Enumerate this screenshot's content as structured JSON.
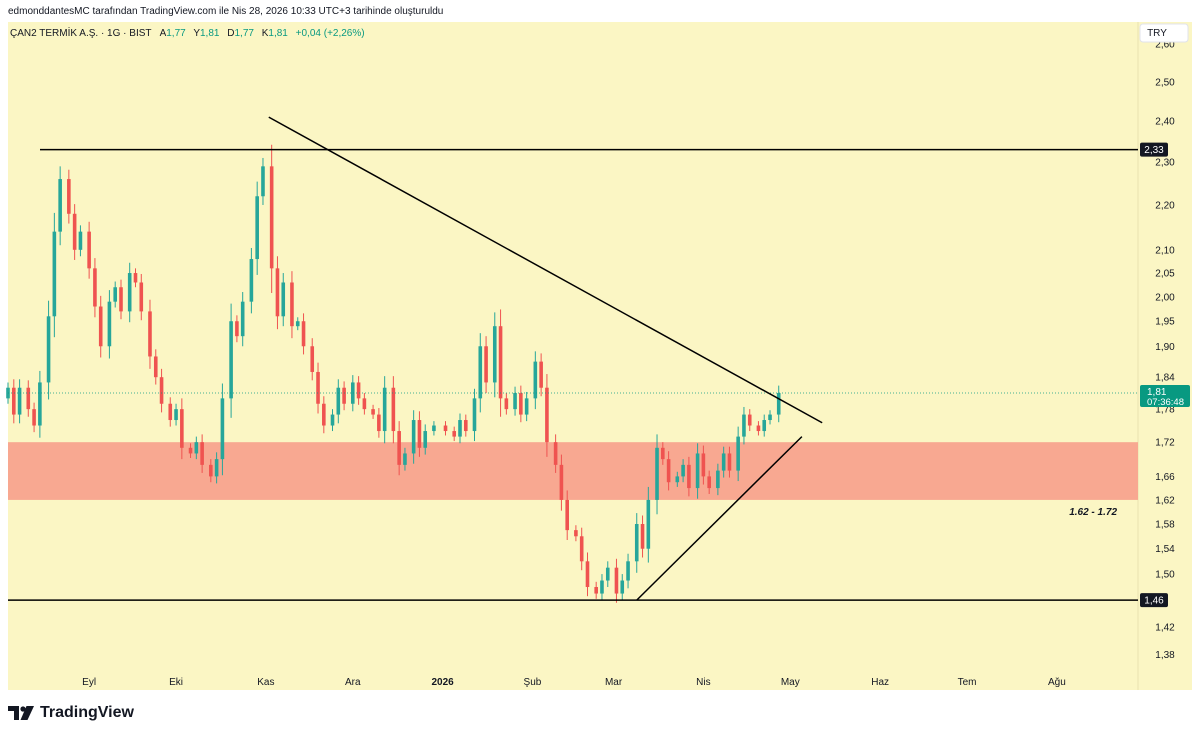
{
  "header": {
    "caption": "edmonddantesMC tarafından TradingView.com ile Nis 28, 2026 10:33 UTC+3 tarihinde oluşturuldu"
  },
  "legend": {
    "symbol": "ÇAN2 TERMİK A.Ş. · 1G · BIST",
    "open_label": "A",
    "open_value": "1,77",
    "high_label": "Y",
    "high_value": "1,81",
    "low_label": "D",
    "low_value": "1,77",
    "close_label": "K",
    "close_value": "1,81",
    "change": "+0,04 (+2,26%)"
  },
  "currency": "TRY",
  "branding": {
    "name": "TradingView"
  },
  "colors": {
    "background": "#fbf6c4",
    "up": "#26a69a",
    "down": "#ef5350",
    "zone": "#f8a891",
    "line": "#000000",
    "price_badge": "#089981"
  },
  "chart_data": {
    "type": "candlestick",
    "symbol": "ÇAN2",
    "interval": "1G",
    "ylim": [
      1.33,
      2.66
    ],
    "y_scale": "log",
    "y_ticks": [
      2.6,
      2.5,
      2.4,
      2.3,
      2.2,
      2.1,
      2.05,
      2.0,
      1.95,
      1.9,
      1.84,
      1.78,
      1.72,
      1.66,
      1.62,
      1.58,
      1.54,
      1.5,
      1.42,
      1.38
    ],
    "y_tick_labels": [
      "2,60",
      "2,50",
      "2,40",
      "2,30",
      "2,20",
      "2,10",
      "2,05",
      "2,00",
      "1,95",
      "1,90",
      "1,84",
      "1,78",
      "1,72",
      "1,66",
      "1,62",
      "1,58",
      "1,54",
      "1,50",
      "1,42",
      "1,38"
    ],
    "x_ticks": [
      {
        "label": "Eyl",
        "date": "2025-09-01",
        "bold": false
      },
      {
        "label": "Eki",
        "date": "2025-10-01",
        "bold": false
      },
      {
        "label": "Kas",
        "date": "2025-11-01",
        "bold": false
      },
      {
        "label": "Ara",
        "date": "2025-12-01",
        "bold": false
      },
      {
        "label": "2026",
        "date": "2026-01-01",
        "bold": true
      },
      {
        "label": "Şub",
        "date": "2026-02-01",
        "bold": false
      },
      {
        "label": "Mar",
        "date": "2026-03-01",
        "bold": false
      },
      {
        "label": "Nis",
        "date": "2026-04-01",
        "bold": false
      },
      {
        "label": "May",
        "date": "2026-05-01",
        "bold": false
      },
      {
        "label": "Haz",
        "date": "2026-06-01",
        "bold": false
      },
      {
        "label": "Tem",
        "date": "2026-07-01",
        "bold": false
      },
      {
        "label": "Ağu",
        "date": "2026-08-01",
        "bold": false
      }
    ],
    "x_domain": [
      "2025-08-04",
      "2026-08-29"
    ],
    "close_series": [
      [
        "2025-08-04",
        1.82
      ],
      [
        "2025-08-06",
        1.77
      ],
      [
        "2025-08-08",
        1.82
      ],
      [
        "2025-08-11",
        1.78
      ],
      [
        "2025-08-13",
        1.75
      ],
      [
        "2025-08-15",
        1.83
      ],
      [
        "2025-08-18",
        1.96
      ],
      [
        "2025-08-20",
        2.14
      ],
      [
        "2025-08-22",
        2.26
      ],
      [
        "2025-08-25",
        2.18
      ],
      [
        "2025-08-27",
        2.1
      ],
      [
        "2025-08-29",
        2.14
      ],
      [
        "2025-09-01",
        2.06
      ],
      [
        "2025-09-03",
        1.98
      ],
      [
        "2025-09-05",
        1.9
      ],
      [
        "2025-09-08",
        1.99
      ],
      [
        "2025-09-10",
        2.02
      ],
      [
        "2025-09-12",
        1.97
      ],
      [
        "2025-09-15",
        2.05
      ],
      [
        "2025-09-17",
        2.03
      ],
      [
        "2025-09-19",
        1.97
      ],
      [
        "2025-09-22",
        1.88
      ],
      [
        "2025-09-24",
        1.84
      ],
      [
        "2025-09-26",
        1.79
      ],
      [
        "2025-09-29",
        1.76
      ],
      [
        "2025-10-01",
        1.78
      ],
      [
        "2025-10-03",
        1.71
      ],
      [
        "2025-10-06",
        1.7
      ],
      [
        "2025-10-08",
        1.72
      ],
      [
        "2025-10-10",
        1.68
      ],
      [
        "2025-10-13",
        1.66
      ],
      [
        "2025-10-15",
        1.69
      ],
      [
        "2025-10-17",
        1.8
      ],
      [
        "2025-10-20",
        1.95
      ],
      [
        "2025-10-22",
        1.92
      ],
      [
        "2025-10-24",
        1.99
      ],
      [
        "2025-10-27",
        2.08
      ],
      [
        "2025-10-29",
        2.22
      ],
      [
        "2025-10-31",
        2.29
      ],
      [
        "2025-11-03",
        2.06
      ],
      [
        "2025-11-05",
        1.96
      ],
      [
        "2025-11-07",
        2.03
      ],
      [
        "2025-11-10",
        1.94
      ],
      [
        "2025-11-12",
        1.95
      ],
      [
        "2025-11-14",
        1.9
      ],
      [
        "2025-11-17",
        1.85
      ],
      [
        "2025-11-19",
        1.79
      ],
      [
        "2025-11-21",
        1.75
      ],
      [
        "2025-11-24",
        1.77
      ],
      [
        "2025-11-26",
        1.82
      ],
      [
        "2025-11-28",
        1.79
      ],
      [
        "2025-12-01",
        1.83
      ],
      [
        "2025-12-03",
        1.8
      ],
      [
        "2025-12-05",
        1.78
      ],
      [
        "2025-12-08",
        1.77
      ],
      [
        "2025-12-10",
        1.74
      ],
      [
        "2025-12-12",
        1.82
      ],
      [
        "2025-12-15",
        1.74
      ],
      [
        "2025-12-17",
        1.68
      ],
      [
        "2025-12-19",
        1.7
      ],
      [
        "2025-12-22",
        1.76
      ],
      [
        "2025-12-24",
        1.71
      ],
      [
        "2025-12-26",
        1.74
      ],
      [
        "2025-12-29",
        1.75
      ],
      [
        "2026-01-02",
        1.74
      ],
      [
        "2026-01-05",
        1.73
      ],
      [
        "2026-01-07",
        1.76
      ],
      [
        "2026-01-09",
        1.74
      ],
      [
        "2026-01-12",
        1.8
      ],
      [
        "2026-01-14",
        1.9
      ],
      [
        "2026-01-16",
        1.83
      ],
      [
        "2026-01-19",
        1.94
      ],
      [
        "2026-01-21",
        1.8
      ],
      [
        "2026-01-23",
        1.78
      ],
      [
        "2026-01-26",
        1.81
      ],
      [
        "2026-01-28",
        1.77
      ],
      [
        "2026-01-30",
        1.8
      ],
      [
        "2026-02-02",
        1.87
      ],
      [
        "2026-02-04",
        1.82
      ],
      [
        "2026-02-06",
        1.72
      ],
      [
        "2026-02-09",
        1.68
      ],
      [
        "2026-02-11",
        1.62
      ],
      [
        "2026-02-13",
        1.57
      ],
      [
        "2026-02-16",
        1.56
      ],
      [
        "2026-02-18",
        1.52
      ],
      [
        "2026-02-20",
        1.48
      ],
      [
        "2026-02-23",
        1.47
      ],
      [
        "2026-02-25",
        1.49
      ],
      [
        "2026-02-27",
        1.51
      ],
      [
        "2026-03-02",
        1.47
      ],
      [
        "2026-03-04",
        1.49
      ],
      [
        "2026-03-06",
        1.52
      ],
      [
        "2026-03-09",
        1.58
      ],
      [
        "2026-03-11",
        1.54
      ],
      [
        "2026-03-13",
        1.62
      ],
      [
        "2026-03-16",
        1.71
      ],
      [
        "2026-03-18",
        1.69
      ],
      [
        "2026-03-20",
        1.65
      ],
      [
        "2026-03-23",
        1.66
      ],
      [
        "2026-03-25",
        1.68
      ],
      [
        "2026-03-27",
        1.64
      ],
      [
        "2026-03-30",
        1.7
      ],
      [
        "2026-04-01",
        1.66
      ],
      [
        "2026-04-03",
        1.64
      ],
      [
        "2026-04-06",
        1.67
      ],
      [
        "2026-04-08",
        1.7
      ],
      [
        "2026-04-10",
        1.67
      ],
      [
        "2026-04-13",
        1.73
      ],
      [
        "2026-04-15",
        1.77
      ],
      [
        "2026-04-17",
        1.75
      ],
      [
        "2026-04-20",
        1.74
      ],
      [
        "2026-04-22",
        1.76
      ],
      [
        "2026-04-24",
        1.77
      ],
      [
        "2026-04-27",
        1.81
      ]
    ],
    "horizontal_lines": [
      {
        "price": 2.33,
        "label": "2,33"
      },
      {
        "price": 1.46,
        "label": "1,46"
      }
    ],
    "zone": {
      "from": 1.62,
      "to": 1.72,
      "label": "1.62 - 1.72"
    },
    "trendlines": [
      {
        "from": [
          "2025-11-02",
          2.41
        ],
        "to": [
          "2026-05-12",
          1.755
        ],
        "name": "descending resistance"
      },
      {
        "from": [
          "2026-03-09",
          1.46
        ],
        "to": [
          "2026-05-05",
          1.73
        ],
        "name": "ascending support"
      }
    ],
    "last_price": {
      "price": 1.81,
      "label": "1,81",
      "countdown": "07:36:48"
    }
  }
}
